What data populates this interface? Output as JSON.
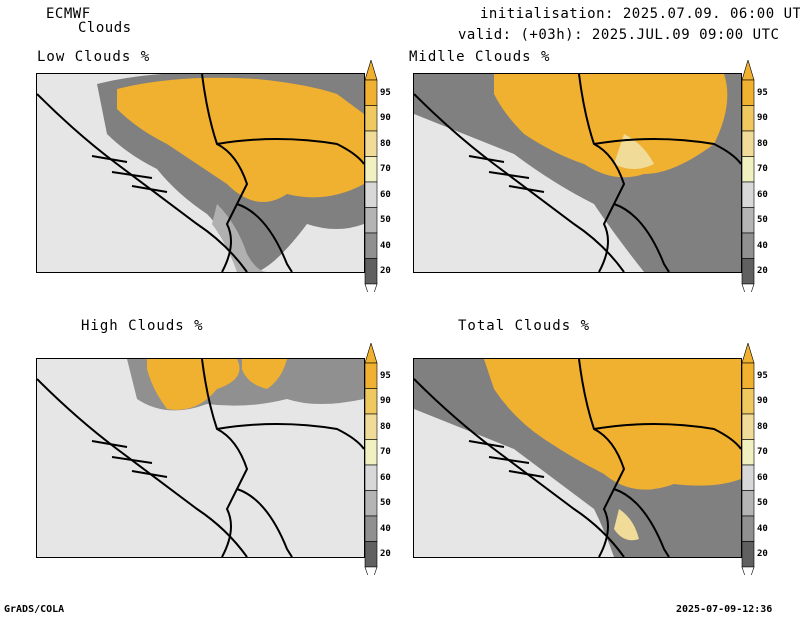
{
  "header": {
    "model": "ECMWF",
    "product": "Clouds",
    "initialisation": "initialisation: 2025.07.09. 06:00 UTC",
    "valid": "valid: (+03h): 2025.JUL.09 09:00 UTC"
  },
  "panels": [
    {
      "title": "Low Clouds %"
    },
    {
      "title": "Midlle Clouds %"
    },
    {
      "title": "High Clouds %"
    },
    {
      "title": "Total Clouds %"
    }
  ],
  "colorbar": {
    "ticks": [
      "95",
      "90",
      "80",
      "70",
      "60",
      "50",
      "40",
      "20"
    ],
    "colors": {
      "c95": "#f0b030",
      "c90": "#f0c860",
      "c80": "#f0dc98",
      "c70": "#f0f0c0",
      "c60": "#d8d8d8",
      "c50": "#b4b4b4",
      "c40": "#909090",
      "c20": "#606060",
      "low": "#ffffff"
    }
  },
  "map_colors": {
    "background": "#e6e6e6",
    "cloud_heavy": "#f0b030",
    "cloud_mid": "#808080",
    "cloud_light": "#b0b0b0",
    "border": "#000000"
  },
  "footer": {
    "left": "GrADS/COLA",
    "right": "2025-07-09-12:36"
  }
}
